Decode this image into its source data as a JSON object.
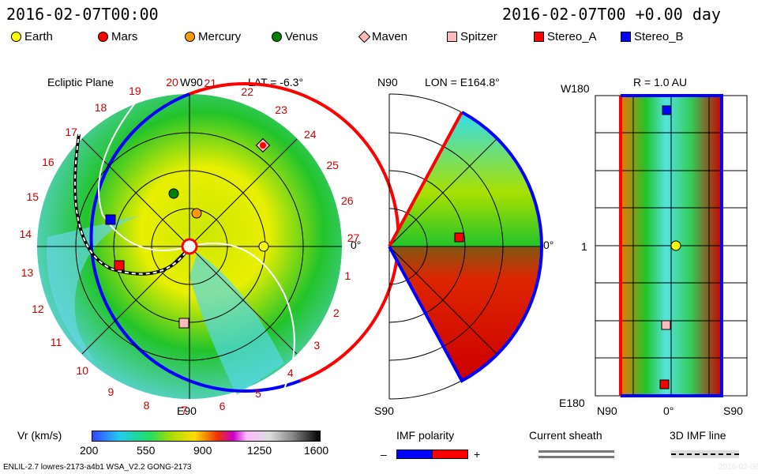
{
  "header": {
    "date": "2016-02-07T00:00",
    "offset": "2016-02-07T00 +0.00 day"
  },
  "legend": [
    {
      "name": "Earth",
      "color": "#ffff00",
      "shape": "circle"
    },
    {
      "name": "Mars",
      "color": "#ff0000",
      "shape": "circle"
    },
    {
      "name": "Mercury",
      "color": "#ff9900",
      "shape": "circle"
    },
    {
      "name": "Venus",
      "color": "#008000",
      "shape": "circle"
    },
    {
      "name": "Maven",
      "color": "#ffbbbb",
      "shape": "diamond"
    },
    {
      "name": "Spitzer",
      "color": "#ffbbbb",
      "shape": "square"
    },
    {
      "name": "Stereo_A",
      "color": "#ff0000",
      "shape": "square"
    },
    {
      "name": "Stereo_B",
      "color": "#0000ff",
      "shape": "square"
    }
  ],
  "panel1": {
    "title": "Ecliptic Plane",
    "top": "W90",
    "lat": "LAT = -6.3°",
    "bottom": "E90",
    "right": "0°",
    "carrington": [
      "20",
      "21",
      "22",
      "23",
      "24",
      "25",
      "26",
      "27",
      "1",
      "2",
      "3",
      "4",
      "5",
      "6",
      "7",
      "8",
      "9",
      "10",
      "11",
      "12",
      "13",
      "14",
      "15",
      "16",
      "17",
      "18",
      "19"
    ]
  },
  "panel2": {
    "top": "N90",
    "lon": "LON = E164.8°",
    "bottom": "S90",
    "right": "0°"
  },
  "panel3": {
    "r": "R = 1.0 AU",
    "topleft": "W180",
    "mid": "1",
    "bottomleft": "E180",
    "x_left": "N90",
    "x_mid": "0°",
    "x_right": "S90"
  },
  "colorbar": {
    "label": "Vr (km/s)",
    "ticks": [
      "200",
      "550",
      "900",
      "1250",
      "1600"
    ]
  },
  "imf": {
    "title": "IMF polarity",
    "minus": "–",
    "plus": "+"
  },
  "sheath": {
    "title": "Current sheath"
  },
  "imf3d": {
    "title": "3D IMF line"
  },
  "footer": {
    "left": "ENLIL-2.7 lowres-2173-a4b1 WSA_V2.2 GONG-2173",
    "right": "2016-02-06"
  },
  "chart_data": {
    "type": "heatmap",
    "title": "Vr (km/s)",
    "ylim": [
      200,
      1600
    ],
    "colorbar_ticks": [
      200,
      550,
      900,
      1250,
      1600
    ],
    "date": "2016-02-07T00:00",
    "objects": [
      "Earth",
      "Mars",
      "Mercury",
      "Venus",
      "Maven",
      "Spitzer",
      "Stereo_A",
      "Stereo_B"
    ]
  }
}
